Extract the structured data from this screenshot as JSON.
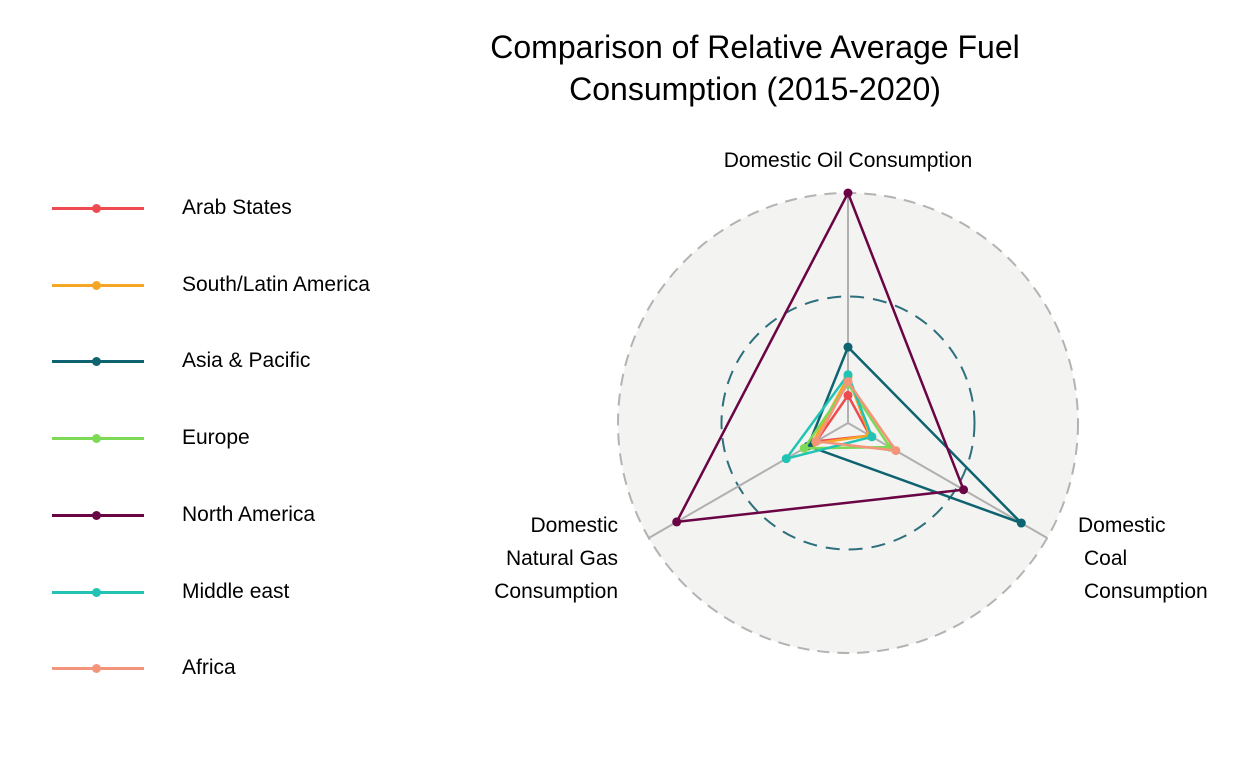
{
  "chart_data": {
    "type": "radar",
    "title": "Comparison of Relative Average Fuel\nConsumption (2015-2020)",
    "axes": [
      {
        "label_lines": [
          "Domestic Oil Consumption"
        ]
      },
      {
        "label_lines": [
          "Domestic",
          "Coal",
          "Consumption"
        ]
      },
      {
        "label_lines": [
          "Domestic",
          "Natural Gas",
          "Consumption"
        ]
      }
    ],
    "rmax": 1.0,
    "reference_circle": 0.55,
    "legend_position": "left",
    "series": [
      {
        "name": "Arab States",
        "color": "#ef4a4f",
        "values": [
          0.12,
          0.11,
          0.16
        ]
      },
      {
        "name": "South/Latin America",
        "color": "#f5a623",
        "values": [
          0.2,
          0.11,
          0.18
        ]
      },
      {
        "name": "Asia & Pacific",
        "color": "#0e6371",
        "values": [
          0.33,
          0.87,
          0.2
        ]
      },
      {
        "name": "Europe",
        "color": "#7ed957",
        "values": [
          0.17,
          0.21,
          0.22
        ]
      },
      {
        "name": "North America",
        "color": "#6a0445",
        "values": [
          1.0,
          0.58,
          0.86
        ]
      },
      {
        "name": "Middle east",
        "color": "#21c4b4",
        "values": [
          0.21,
          0.12,
          0.31
        ]
      },
      {
        "name": "Africa",
        "color": "#f4957b",
        "values": [
          0.18,
          0.24,
          0.16
        ]
      }
    ]
  }
}
